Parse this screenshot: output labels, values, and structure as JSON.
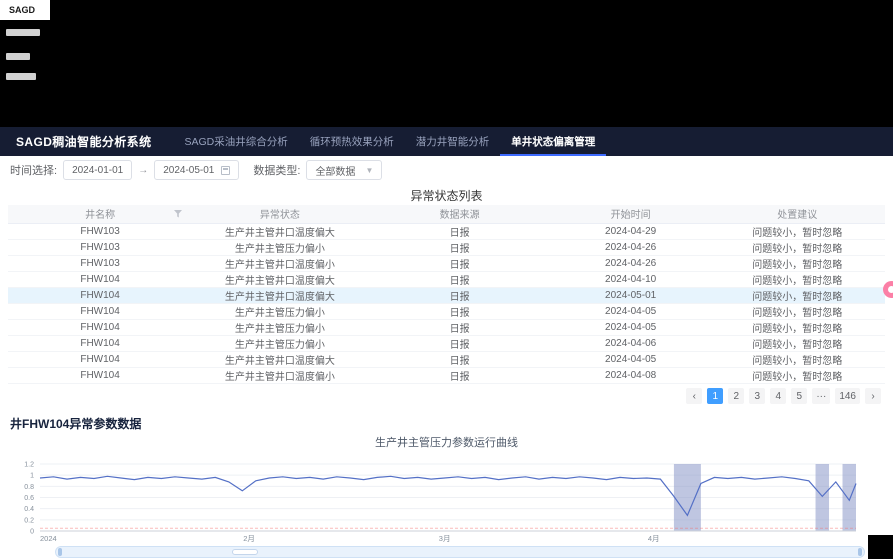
{
  "chrome": {
    "logo": "SAGD"
  },
  "header": {
    "brand": "SAGD稠油智能分析系统",
    "nav": [
      {
        "label": "SAGD采油井综合分析",
        "active": false
      },
      {
        "label": "循环预热效果分析",
        "active": false
      },
      {
        "label": "潜力井智能分析",
        "active": false
      },
      {
        "label": "单井状态偏离管理",
        "active": true
      }
    ]
  },
  "toolbar": {
    "time_label": "时间选择:",
    "date_start": "2024-01-01",
    "date_separator": "→",
    "date_end": "2024-05-01",
    "type_label": "数据类型:",
    "type_value": "全部数据"
  },
  "table": {
    "title": "异常状态列表",
    "columns": [
      "井名称",
      "异常状态",
      "数据来源",
      "开始时间",
      "处置建议"
    ],
    "rows": [
      [
        "FHW103",
        "生产井主管井口温度偏大",
        "日报",
        "2024-04-29",
        "问题较小，暂时忽略"
      ],
      [
        "FHW103",
        "生产井主管压力偏小",
        "日报",
        "2024-04-26",
        "问题较小，暂时忽略"
      ],
      [
        "FHW103",
        "生产井主管井口温度偏小",
        "日报",
        "2024-04-26",
        "问题较小，暂时忽略"
      ],
      [
        "FHW104",
        "生产井主管井口温度偏大",
        "日报",
        "2024-04-10",
        "问题较小，暂时忽略"
      ],
      [
        "FHW104",
        "生产井主管井口温度偏大",
        "日报",
        "2024-05-01",
        "问题较小，暂时忽略"
      ],
      [
        "FHW104",
        "生产井主管压力偏小",
        "日报",
        "2024-04-05",
        "问题较小，暂时忽略"
      ],
      [
        "FHW104",
        "生产井主管压力偏小",
        "日报",
        "2024-04-05",
        "问题较小，暂时忽略"
      ],
      [
        "FHW104",
        "生产井主管压力偏小",
        "日报",
        "2024-04-06",
        "问题较小，暂时忽略"
      ],
      [
        "FHW104",
        "生产井主管井口温度偏大",
        "日报",
        "2024-04-05",
        "问题较小，暂时忽略"
      ],
      [
        "FHW104",
        "生产井主管井口温度偏小",
        "日报",
        "2024-04-08",
        "问题较小，暂时忽略"
      ]
    ],
    "selected_row_index": 4
  },
  "pagination": {
    "prev": "‹",
    "pages": [
      "1",
      "2",
      "3",
      "4",
      "5",
      "···",
      "146"
    ],
    "active": "1",
    "next": "›"
  },
  "section": {
    "title": "井FHW104异常参数数据"
  },
  "chart_data": {
    "type": "line",
    "title": "生产井主管压力参数运行曲线",
    "x_range": [
      "2024-01-01",
      "2024-05-01"
    ],
    "x": [
      "2024-01-01",
      "2024-01-03",
      "2024-01-05",
      "2024-01-07",
      "2024-01-09",
      "2024-01-11",
      "2024-01-13",
      "2024-01-15",
      "2024-01-17",
      "2024-01-19",
      "2024-01-21",
      "2024-01-23",
      "2024-01-25",
      "2024-01-27",
      "2024-01-29",
      "2024-01-31",
      "2024-02-02",
      "2024-02-04",
      "2024-02-06",
      "2024-02-08",
      "2024-02-10",
      "2024-02-12",
      "2024-02-14",
      "2024-02-16",
      "2024-02-18",
      "2024-02-20",
      "2024-02-22",
      "2024-02-24",
      "2024-02-26",
      "2024-02-28",
      "2024-03-01",
      "2024-03-03",
      "2024-03-05",
      "2024-03-07",
      "2024-03-09",
      "2024-03-11",
      "2024-03-13",
      "2024-03-15",
      "2024-03-17",
      "2024-03-19",
      "2024-03-21",
      "2024-03-23",
      "2024-03-25",
      "2024-03-27",
      "2024-03-29",
      "2024-03-31",
      "2024-04-02",
      "2024-04-04",
      "2024-04-06",
      "2024-04-08",
      "2024-04-10",
      "2024-04-12",
      "2024-04-14",
      "2024-04-16",
      "2024-04-18",
      "2024-04-20",
      "2024-04-22",
      "2024-04-24",
      "2024-04-26",
      "2024-04-28",
      "2024-04-30",
      "2024-05-01"
    ],
    "values": [
      0.95,
      0.97,
      0.93,
      0.96,
      0.94,
      0.98,
      0.95,
      0.92,
      0.96,
      0.94,
      0.97,
      0.95,
      0.93,
      0.96,
      0.88,
      0.72,
      0.9,
      0.95,
      0.97,
      0.94,
      0.96,
      0.93,
      0.97,
      0.95,
      0.92,
      0.96,
      0.98,
      0.94,
      0.96,
      0.93,
      0.95,
      0.97,
      0.94,
      0.96,
      0.92,
      0.95,
      0.97,
      0.93,
      0.96,
      0.94,
      0.97,
      0.95,
      0.92,
      0.96,
      0.94,
      0.95,
      0.93,
      0.62,
      0.28,
      0.85,
      0.96,
      0.94,
      0.96,
      0.93,
      0.95,
      0.97,
      0.94,
      0.9,
      0.62,
      0.88,
      0.55,
      0.85
    ],
    "ylim": [
      0,
      1.2
    ],
    "y_ticks": [
      0,
      0.2,
      0.4,
      0.6,
      0.8,
      1,
      1.2
    ],
    "x_tick_labels": [
      {
        "label": "2024",
        "date": "2024-01-01",
        "anchor": "start"
      },
      {
        "label": "2月",
        "date": "2024-02-01",
        "anchor": "middle"
      },
      {
        "label": "3月",
        "date": "2024-03-01",
        "anchor": "middle"
      },
      {
        "label": "4月",
        "date": "2024-04-01",
        "anchor": "middle"
      }
    ],
    "mark_areas": [
      [
        "2024-04-04",
        "2024-04-08"
      ],
      [
        "2024-04-25",
        "2024-04-27"
      ],
      [
        "2024-04-29",
        "2024-05-01"
      ]
    ],
    "threshold": 0.05,
    "grid": true,
    "legend_position": "none",
    "line_color": "#5470c6",
    "mark_area_color": "#8a97c9",
    "threshold_color": "#f56c6c"
  }
}
